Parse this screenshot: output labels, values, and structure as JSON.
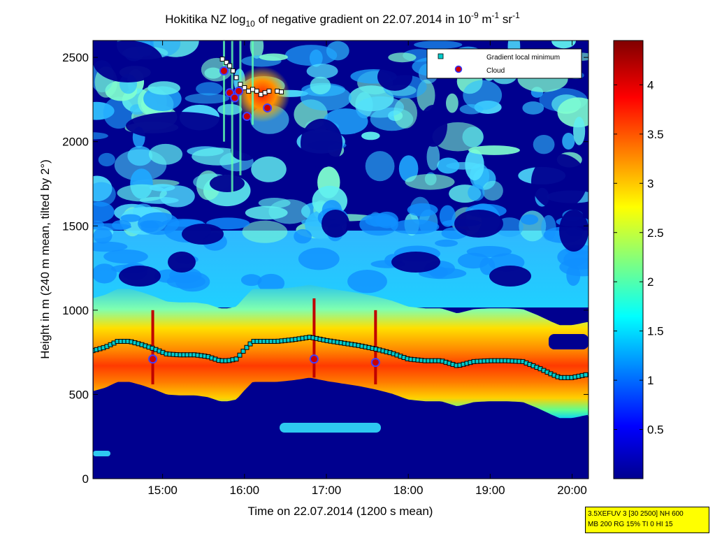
{
  "chart_data": {
    "type": "heatmap",
    "title": {
      "prefix": "Hokitika NZ log",
      "prefix_sub": "10",
      "middle": " of negative gradient on 22.07.2014 in 10",
      "exp1": "-9",
      "unit_m": " m",
      "exp2": "-1",
      "unit_sr": " sr",
      "exp3": "-1"
    },
    "xlabel": "Time on 22.07.2014 (1200 s mean)",
    "ylabel": "Height in m (240 m mean, tilted by 2°)",
    "xlim": [
      14.15,
      20.2
    ],
    "ylim": [
      0,
      2600
    ],
    "x_ticks": [
      {
        "value": 15,
        "label": "15:00"
      },
      {
        "value": 16,
        "label": "16:00"
      },
      {
        "value": 17,
        "label": "17:00"
      },
      {
        "value": 18,
        "label": "18:00"
      },
      {
        "value": 19,
        "label": "19:00"
      },
      {
        "value": 20,
        "label": "20:00"
      }
    ],
    "y_ticks": [
      {
        "value": 0,
        "label": "0"
      },
      {
        "value": 500,
        "label": "500"
      },
      {
        "value": 1000,
        "label": "1000"
      },
      {
        "value": 1500,
        "label": "1500"
      },
      {
        "value": 2000,
        "label": "2000"
      },
      {
        "value": 2500,
        "label": "2500"
      }
    ],
    "colorbar": {
      "range": [
        0,
        4.45
      ],
      "ticks": [
        {
          "value": 0.5,
          "label": "0.5"
        },
        {
          "value": 1,
          "label": "1"
        },
        {
          "value": 1.5,
          "label": "1.5"
        },
        {
          "value": 2,
          "label": "2"
        },
        {
          "value": 2.5,
          "label": "2.5"
        },
        {
          "value": 3,
          "label": "3"
        },
        {
          "value": 3.5,
          "label": "3.5"
        },
        {
          "value": 4,
          "label": "4"
        }
      ],
      "colormap": "jet"
    },
    "legend": {
      "placement": "top-right",
      "entries": [
        {
          "label": "Gradient local minimum",
          "marker": "square",
          "color": "#00cccc"
        },
        {
          "label": "Cloud",
          "marker": "circle",
          "color": "#cc0000"
        }
      ]
    },
    "series": [
      {
        "name": "Gradient local minimum",
        "x": [
          14.15,
          14.3,
          14.45,
          14.6,
          14.75,
          14.9,
          15.05,
          15.2,
          15.4,
          15.55,
          15.7,
          15.8,
          15.9,
          16.0,
          16.1,
          16.25,
          16.4,
          16.6,
          16.8,
          17.0,
          17.2,
          17.4,
          17.6,
          17.8,
          18.0,
          18.2,
          18.4,
          18.6,
          18.8,
          19.0,
          19.2,
          19.4,
          19.6,
          19.75,
          19.85,
          20.0,
          20.2
        ],
        "y": [
          760,
          780,
          815,
          815,
          795,
          770,
          740,
          735,
          735,
          725,
          700,
          700,
          710,
          765,
          815,
          815,
          815,
          825,
          840,
          820,
          805,
          790,
          770,
          745,
          710,
          700,
          700,
          670,
          695,
          700,
          700,
          695,
          655,
          620,
          600,
          600,
          620
        ]
      },
      {
        "name": "Cloud",
        "x": [
          14.88,
          15.75,
          15.82,
          15.88,
          15.93,
          16.03,
          16.28,
          16.85,
          17.6
        ],
        "y": [
          710,
          2420,
          2290,
          2260,
          2300,
          2150,
          2200,
          710,
          690
        ]
      }
    ],
    "info_box": {
      "line1": "3.5XEFUV 3 [30 2500] NH 600",
      "line2": "MB 200 RG 15% TI 0 HI 15"
    }
  }
}
